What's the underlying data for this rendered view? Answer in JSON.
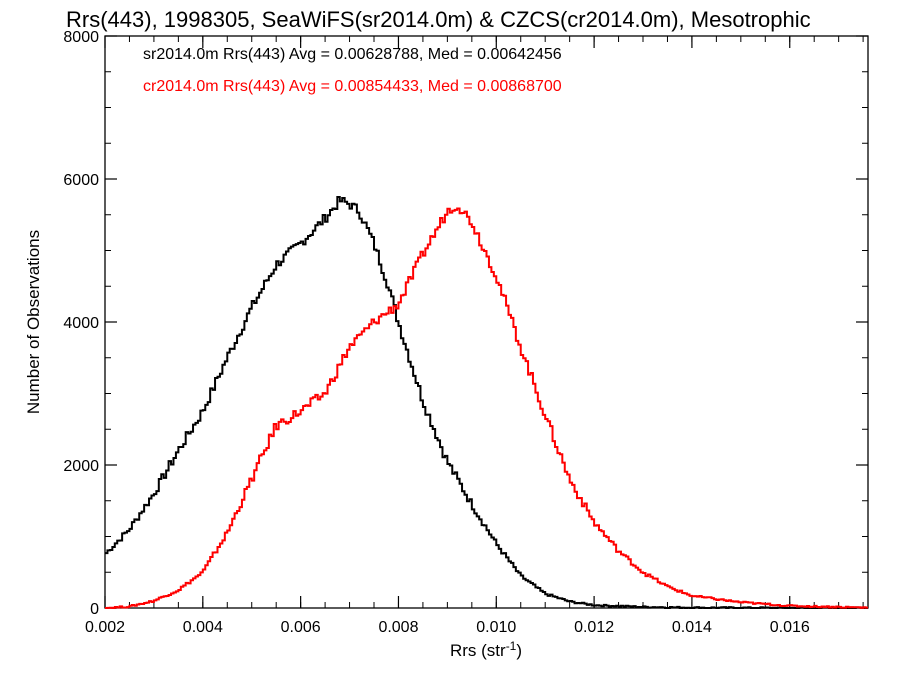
{
  "chart_data": {
    "type": "line",
    "step": true,
    "title": "Rrs(443), 1998305, SeaWiFS(sr2014.0m) & CZCS(cr2014.0m), Mesotrophic",
    "xlabel": "Rrs (str",
    "xlabel_sup": "-1",
    "xlabel_tail": ")",
    "ylabel": "Number of Observations",
    "xlim": [
      0.002,
      0.0176
    ],
    "ylim": [
      0,
      8000
    ],
    "x_ticks": [
      0.002,
      0.004,
      0.006,
      0.008,
      0.01,
      0.012,
      0.014,
      0.016
    ],
    "x_tick_labels": [
      "0.002",
      "0.004",
      "0.006",
      "0.008",
      "0.010",
      "0.012",
      "0.014",
      "0.016"
    ],
    "y_ticks": [
      0,
      2000,
      4000,
      6000,
      8000
    ],
    "y_tick_labels": [
      "0",
      "2000",
      "4000",
      "6000",
      "8000"
    ],
    "grid": false,
    "legend_position": "top-left",
    "annotations": [
      {
        "text": "sr2014.0m Rrs(443) Avg = 0.00628788, Med = 0.00642456",
        "color": "#000000"
      },
      {
        "text": "cr2014.0m Rrs(443) Avg = 0.00854433, Med = 0.00868700",
        "color": "#ff0000"
      }
    ],
    "series": [
      {
        "color": "#000000",
        "x": [
          0.002,
          0.0025,
          0.003,
          0.0035,
          0.004,
          0.0045,
          0.005,
          0.0055,
          0.006,
          0.0065,
          0.0068,
          0.007,
          0.0072,
          0.0075,
          0.0078,
          0.008,
          0.0085,
          0.009,
          0.0095,
          0.01,
          0.0105,
          0.011,
          0.0115,
          0.012,
          0.013,
          0.014,
          0.015,
          0.016,
          0.0176
        ],
        "y": [
          750,
          1100,
          1600,
          2200,
          2750,
          3500,
          4200,
          4800,
          5100,
          5450,
          5700,
          5650,
          5550,
          5100,
          4500,
          4000,
          2900,
          2050,
          1450,
          900,
          450,
          200,
          90,
          40,
          15,
          5,
          2,
          0,
          0
        ]
      },
      {
        "color": "#ff0000",
        "x": [
          0.002,
          0.0025,
          0.003,
          0.0035,
          0.004,
          0.0045,
          0.005,
          0.0055,
          0.006,
          0.0065,
          0.007,
          0.0075,
          0.008,
          0.0085,
          0.009,
          0.0092,
          0.0095,
          0.01,
          0.0105,
          0.011,
          0.0115,
          0.012,
          0.0125,
          0.013,
          0.0135,
          0.014,
          0.015,
          0.016,
          0.0176
        ],
        "y": [
          0,
          20,
          100,
          250,
          500,
          1050,
          1800,
          2550,
          2750,
          3000,
          3650,
          4000,
          4250,
          4950,
          5550,
          5650,
          5400,
          4650,
          3650,
          2700,
          1800,
          1200,
          800,
          500,
          300,
          170,
          80,
          30,
          5
        ]
      }
    ]
  }
}
